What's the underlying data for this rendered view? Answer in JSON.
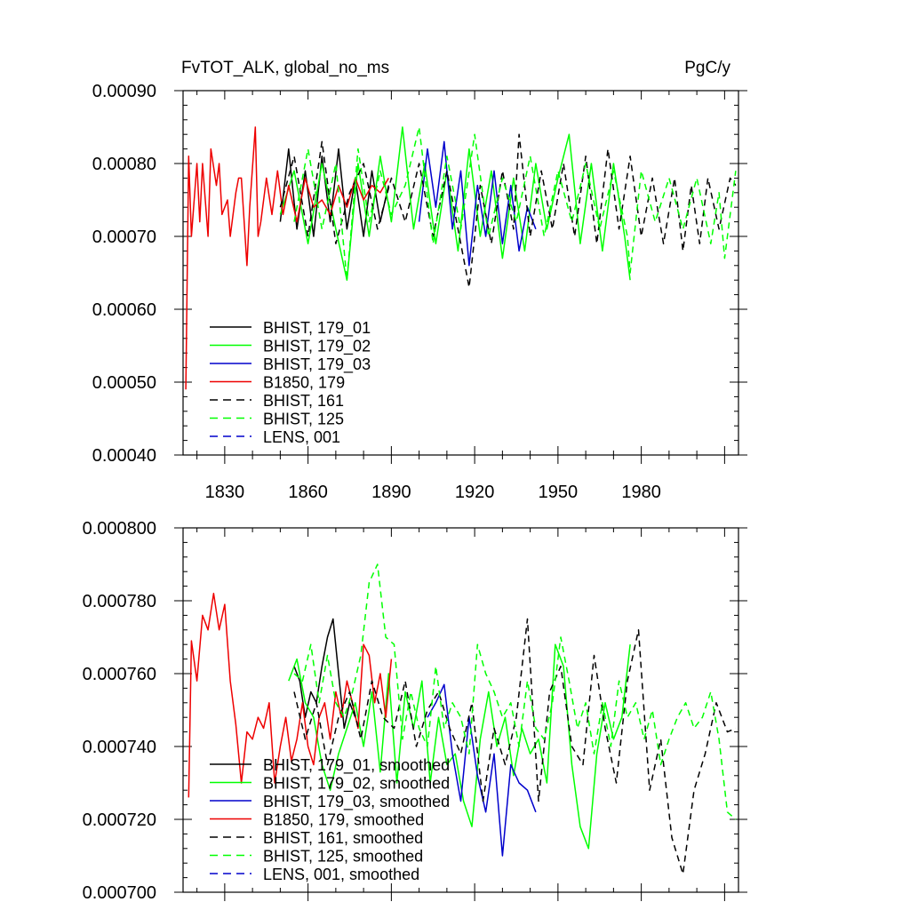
{
  "colors": {
    "black": "#000000",
    "green": "#00ff00",
    "blue": "#0000cc",
    "red": "#ee0000"
  },
  "chart_data": [
    {
      "type": "line",
      "title": "FvTOT_ALK, global_no_ms",
      "units": "PgC/y",
      "xlabel": "",
      "ylabel": "",
      "xlim": [
        1815,
        2015
      ],
      "ylim": [
        0.0004,
        0.0009
      ],
      "x_ticks": [
        1830,
        1860,
        1890,
        1920,
        1950,
        1980
      ],
      "x_tick_labels": [
        "1830",
        "1860",
        "1890",
        "1920",
        "1950",
        "1980"
      ],
      "y_ticks": [
        0.0004,
        0.0005,
        0.0006,
        0.0007,
        0.0008,
        0.0009
      ],
      "y_tick_labels": [
        "0.00040",
        "0.00050",
        "0.00060",
        "0.00070",
        "0.00080",
        "0.00090"
      ],
      "legend_position": "lower-left",
      "series": [
        {
          "name": "BHIST, 179_01",
          "color_key": "black",
          "dash": "solid",
          "x": [
            1850,
            1853,
            1856,
            1859,
            1862,
            1865,
            1868,
            1871,
            1874,
            1877,
            1880,
            1883,
            1886,
            1889
          ],
          "y": [
            0.00072,
            0.00082,
            0.00071,
            0.00079,
            0.0007,
            0.00081,
            0.00072,
            0.00082,
            0.00071,
            0.00078,
            0.0007,
            0.00079,
            0.00072,
            0.00077
          ]
        },
        {
          "name": "BHIST, 179_02",
          "color_key": "green",
          "dash": "solid",
          "x": [
            1850,
            1855,
            1860,
            1865,
            1870,
            1874,
            1878,
            1882,
            1886,
            1890,
            1894,
            1898,
            1902,
            1906,
            1910,
            1914,
            1918,
            1922,
            1926,
            1930,
            1934,
            1938,
            1942,
            1946,
            1950,
            1954,
            1958,
            1962,
            1966,
            1970,
            1974,
            1976
          ],
          "y": [
            0.00073,
            0.00079,
            0.00069,
            0.0008,
            0.00071,
            0.00064,
            0.0008,
            0.0007,
            0.00081,
            0.00072,
            0.00085,
            0.00071,
            0.0008,
            0.00069,
            0.00079,
            0.00068,
            0.00082,
            0.0007,
            0.00079,
            0.00067,
            0.00078,
            0.00068,
            0.0008,
            0.00071,
            0.00078,
            0.00084,
            0.00069,
            0.0008,
            0.00068,
            0.0008,
            0.0007,
            0.00064
          ]
        },
        {
          "name": "BHIST, 179_03",
          "color_key": "blue",
          "dash": "solid",
          "x": [
            1900,
            1903,
            1906,
            1909,
            1912,
            1915,
            1918,
            1921,
            1924,
            1927,
            1930,
            1933,
            1936,
            1939,
            1942
          ],
          "y": [
            0.00072,
            0.00082,
            0.00074,
            0.00083,
            0.00071,
            0.00079,
            0.00066,
            0.00077,
            0.0007,
            0.00079,
            0.00069,
            0.00077,
            0.00068,
            0.00074,
            0.00071
          ]
        },
        {
          "name": "B1850, 179",
          "color_key": "red",
          "dash": "solid",
          "x": [
            1816,
            1817,
            1818,
            1820,
            1821,
            1822,
            1824,
            1825,
            1827,
            1828,
            1829,
            1831,
            1832,
            1834,
            1835,
            1836,
            1838,
            1839,
            1841,
            1842,
            1843,
            1845,
            1847,
            1849,
            1851,
            1853,
            1856,
            1859,
            1862,
            1865,
            1868,
            1871,
            1874,
            1877,
            1880,
            1883,
            1886,
            1889
          ],
          "y": [
            0.00049,
            0.00081,
            0.0007,
            0.0008,
            0.00072,
            0.0008,
            0.0007,
            0.00082,
            0.00077,
            0.0008,
            0.00073,
            0.00075,
            0.0007,
            0.00076,
            0.00078,
            0.00078,
            0.00066,
            0.00074,
            0.00085,
            0.0007,
            0.00072,
            0.00078,
            0.00073,
            0.00079,
            0.00073,
            0.00077,
            0.00072,
            0.00078,
            0.00074,
            0.00075,
            0.00073,
            0.00077,
            0.00074,
            0.00078,
            0.00075,
            0.00077,
            0.00076,
            0.00078
          ]
        },
        {
          "name": "BHIST, 161",
          "color_key": "black",
          "dash": "dashed",
          "x": [
            1850,
            1855,
            1860,
            1865,
            1870,
            1875,
            1880,
            1885,
            1890,
            1895,
            1900,
            1905,
            1910,
            1915,
            1918,
            1922,
            1926,
            1930,
            1934,
            1936,
            1940,
            1944,
            1948,
            1952,
            1956,
            1960,
            1964,
            1968,
            1972,
            1976,
            1980,
            1984,
            1988,
            1992,
            1995,
            1998,
            2001,
            2004,
            2008,
            2012,
            2014
          ],
          "y": [
            0.00074,
            0.00081,
            0.0007,
            0.00083,
            0.00069,
            0.00076,
            0.0008,
            0.00071,
            0.00078,
            0.00072,
            0.0008,
            0.0007,
            0.00079,
            0.00069,
            0.00063,
            0.00077,
            0.00069,
            0.00079,
            0.00071,
            0.00084,
            0.0007,
            0.00079,
            0.00071,
            0.0008,
            0.0007,
            0.00081,
            0.00069,
            0.00082,
            0.00071,
            0.00081,
            0.0007,
            0.00078,
            0.00069,
            0.00078,
            0.00068,
            0.00077,
            0.00069,
            0.00078,
            0.00071,
            0.00078,
            0.00077
          ]
        },
        {
          "name": "BHIST, 125",
          "color_key": "green",
          "dash": "dashed",
          "x": [
            1855,
            1860,
            1865,
            1870,
            1874,
            1878,
            1882,
            1886,
            1890,
            1895,
            1900,
            1905,
            1910,
            1915,
            1920,
            1925,
            1930,
            1935,
            1940,
            1945,
            1950,
            1955,
            1960,
            1965,
            1970,
            1975,
            1976,
            1980,
            1985,
            1990,
            1995,
            2000,
            2005,
            2008,
            2010,
            2014
          ],
          "y": [
            0.00072,
            0.00082,
            0.00071,
            0.0008,
            0.00064,
            0.00082,
            0.00072,
            0.00079,
            0.00073,
            0.00077,
            0.00085,
            0.00069,
            0.00081,
            0.00071,
            0.00084,
            0.0007,
            0.00078,
            0.00072,
            0.00081,
            0.0007,
            0.00079,
            0.00072,
            0.0008,
            0.00071,
            0.00079,
            0.0007,
            0.00065,
            0.00079,
            0.00072,
            0.00078,
            0.00071,
            0.00078,
            0.00069,
            0.00076,
            0.00067,
            0.00079
          ]
        },
        {
          "name": "LENS, 001",
          "color_key": "blue",
          "dash": "dashed",
          "x": [],
          "y": []
        }
      ]
    },
    {
      "type": "line",
      "title": "",
      "xlim": [
        1815,
        2015
      ],
      "ylim": [
        0.0007,
        0.0008
      ],
      "y_ticks": [
        0.0007,
        0.00072,
        0.00074,
        0.00076,
        0.00078,
        0.0008
      ],
      "y_tick_labels": [
        "0.000700",
        "0.000720",
        "0.000740",
        "0.000760",
        "0.000780",
        "0.000800"
      ],
      "legend_position": "lower-left",
      "series": [
        {
          "name": "BHIST, 179_01, smoothed",
          "color_key": "black",
          "dash": "solid",
          "x": [
            1855,
            1857,
            1859,
            1861,
            1863,
            1865,
            1867,
            1869,
            1871,
            1873,
            1875,
            1877
          ],
          "y": [
            0.000762,
            0.000758,
            0.000748,
            0.000755,
            0.000752,
            0.000762,
            0.00077,
            0.000775,
            0.00076,
            0.000745,
            0.000752,
            0.000748
          ]
        },
        {
          "name": "BHIST, 179_02, smoothed",
          "color_key": "green",
          "dash": "solid",
          "x": [
            1853,
            1856,
            1859,
            1862,
            1865,
            1868,
            1871,
            1874,
            1877,
            1880,
            1883,
            1886,
            1889,
            1892,
            1895,
            1898,
            1901,
            1904,
            1907,
            1910,
            1913,
            1916,
            1919,
            1922,
            1925,
            1928,
            1931,
            1934,
            1937,
            1940,
            1943,
            1946,
            1949,
            1952,
            1955,
            1958,
            1961,
            1964,
            1967,
            1970,
            1973,
            1976
          ],
          "y": [
            0.000758,
            0.000764,
            0.000752,
            0.000748,
            0.000735,
            0.000728,
            0.000738,
            0.000745,
            0.000752,
            0.00074,
            0.000755,
            0.000733,
            0.00076,
            0.00073,
            0.000755,
            0.000745,
            0.000758,
            0.00073,
            0.000748,
            0.000735,
            0.000738,
            0.000725,
            0.000718,
            0.000742,
            0.000755,
            0.00074,
            0.000748,
            0.000732,
            0.000745,
            0.000738,
            0.000742,
            0.00073,
            0.000768,
            0.000762,
            0.000735,
            0.000718,
            0.000712,
            0.000738,
            0.000752,
            0.000742,
            0.000748,
            0.000768
          ]
        },
        {
          "name": "BHIST, 179_03, smoothed",
          "color_key": "blue",
          "dash": "solid",
          "x": [
            1903,
            1906,
            1909,
            1912,
            1915,
            1918,
            1921,
            1924,
            1927,
            1930,
            1933,
            1936,
            1939,
            1942
          ],
          "y": [
            0.000748,
            0.000752,
            0.000757,
            0.000738,
            0.000725,
            0.000748,
            0.000732,
            0.000722,
            0.000738,
            0.00071,
            0.000735,
            0.00073,
            0.000728,
            0.000722
          ]
        },
        {
          "name": "B1850, 179, smoothed",
          "color_key": "red",
          "dash": "solid",
          "x": [
            1817,
            1818,
            1820,
            1822,
            1824,
            1826,
            1828,
            1830,
            1832,
            1834,
            1836,
            1838,
            1840,
            1842,
            1844,
            1846,
            1848,
            1850,
            1852,
            1854,
            1856,
            1858,
            1860,
            1862,
            1864,
            1866,
            1868,
            1870,
            1872,
            1874,
            1876,
            1878,
            1880,
            1882,
            1884,
            1886,
            1888,
            1890
          ],
          "y": [
            0.000726,
            0.000769,
            0.000758,
            0.000776,
            0.000772,
            0.000782,
            0.000772,
            0.000779,
            0.000758,
            0.000746,
            0.00073,
            0.000744,
            0.000742,
            0.000748,
            0.000745,
            0.000752,
            0.00073,
            0.00074,
            0.000748,
            0.000736,
            0.000742,
            0.000752,
            0.00074,
            0.000735,
            0.000748,
            0.000752,
            0.000742,
            0.000755,
            0.000748,
            0.000758,
            0.000752,
            0.000745,
            0.000768,
            0.000765,
            0.000752,
            0.00076,
            0.000748,
            0.000764
          ]
        },
        {
          "name": "BHIST, 161, smoothed",
          "color_key": "black",
          "dash": "dashed",
          "x": [
            1855,
            1859,
            1863,
            1867,
            1871,
            1875,
            1879,
            1883,
            1887,
            1891,
            1895,
            1899,
            1903,
            1907,
            1911,
            1915,
            1919,
            1923,
            1927,
            1931,
            1935,
            1939,
            1943,
            1947,
            1951,
            1955,
            1959,
            1963,
            1967,
            1971,
            1975,
            1979,
            1983,
            1987,
            1991,
            1995,
            1999,
            2003,
            2007,
            2011,
            2014
          ],
          "y": [
            0.000755,
            0.000742,
            0.000752,
            0.000735,
            0.000748,
            0.000755,
            0.000742,
            0.000758,
            0.000748,
            0.000745,
            0.000758,
            0.00074,
            0.00075,
            0.000755,
            0.000745,
            0.000738,
            0.000752,
            0.000725,
            0.000745,
            0.000735,
            0.000748,
            0.000775,
            0.000725,
            0.000755,
            0.000762,
            0.00074,
            0.000735,
            0.000765,
            0.000745,
            0.00073,
            0.000758,
            0.000772,
            0.000728,
            0.000742,
            0.000715,
            0.000705,
            0.000728,
            0.000738,
            0.000752,
            0.000744,
            0.000745
          ]
        },
        {
          "name": "BHIST, 125, smoothed",
          "color_key": "green",
          "dash": "dashed",
          "x": [
            1855,
            1858,
            1861,
            1864,
            1867,
            1870,
            1873,
            1876,
            1879,
            1882,
            1885,
            1888,
            1891,
            1894,
            1897,
            1900,
            1903,
            1906,
            1909,
            1912,
            1915,
            1918,
            1921,
            1924,
            1927,
            1930,
            1933,
            1936,
            1939,
            1942,
            1945,
            1948,
            1951,
            1954,
            1957,
            1960,
            1963,
            1966,
            1969,
            1972,
            1975,
            1978,
            1981,
            1984,
            1987,
            1990,
            1993,
            1996,
            1999,
            2002,
            2005,
            2008,
            2011,
            2014
          ],
          "y": [
            0.00076,
            0.000758,
            0.000768,
            0.000752,
            0.000765,
            0.000752,
            0.000748,
            0.000755,
            0.000765,
            0.000785,
            0.00079,
            0.00077,
            0.000768,
            0.000742,
            0.000755,
            0.000745,
            0.00074,
            0.000762,
            0.000745,
            0.000752,
            0.000748,
            0.000738,
            0.000768,
            0.00076,
            0.000755,
            0.000748,
            0.000752,
            0.00074,
            0.000758,
            0.000745,
            0.000742,
            0.000752,
            0.00077,
            0.000758,
            0.000745,
            0.000752,
            0.000738,
            0.000752,
            0.00074,
            0.000758,
            0.000748,
            0.000752,
            0.000742,
            0.00075,
            0.000735,
            0.000742,
            0.000748,
            0.000752,
            0.000745,
            0.000748,
            0.000755,
            0.000742,
            0.000722,
            0.00072
          ]
        },
        {
          "name": "LENS, 001, smoothed",
          "color_key": "blue",
          "dash": "dashed",
          "x": [],
          "y": []
        }
      ]
    }
  ]
}
